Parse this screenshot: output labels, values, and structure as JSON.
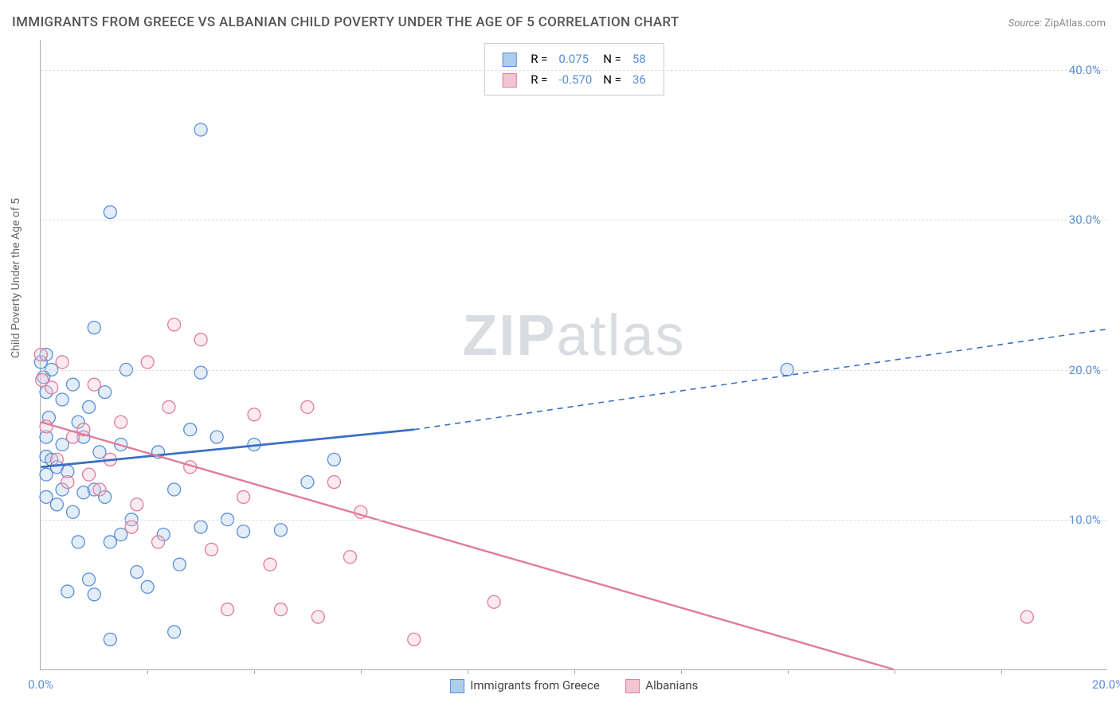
{
  "title": "IMMIGRANTS FROM GREECE VS ALBANIAN CHILD POVERTY UNDER THE AGE OF 5 CORRELATION CHART",
  "source_label": "Source:",
  "source_name": "ZipAtlas.com",
  "watermark_1": "ZIP",
  "watermark_2": "atlas",
  "ylabel": "Child Poverty Under the Age of 5",
  "chart": {
    "type": "scatter",
    "xlim": [
      0,
      20
    ],
    "ylim": [
      0,
      42
    ],
    "x_ticks": [
      0,
      20
    ],
    "x_tick_labels": [
      "0.0%",
      "20.0%"
    ],
    "x_minor_ticks": [
      2.0,
      4.0,
      6.0,
      8.0,
      10.0,
      12.0,
      14.0,
      16.0,
      18.0
    ],
    "y_ticks": [
      10,
      20,
      30,
      40
    ],
    "y_tick_labels": [
      "10.0%",
      "20.0%",
      "30.0%",
      "40.0%"
    ],
    "background_color": "#ffffff",
    "grid_color": "#dddddd",
    "axis_color": "#aaaaaa",
    "tick_label_color": "#5b8fd6",
    "label_color": "#666666",
    "title_color": "#555555",
    "title_fontsize": 17,
    "marker_radius": 8,
    "marker_fill_opacity": 0.35,
    "marker_stroke_width": 1.3
  },
  "series": {
    "blue": {
      "label": "Immigrants from Greece",
      "color": "#6fa3de",
      "fill": "#aeccec",
      "stroke": "#5b8fd6",
      "R": "0.075",
      "N": "58",
      "trend_solid": {
        "x1": 0,
        "y1": 13.5,
        "x2": 7,
        "y2": 16.0
      },
      "trend_dashed": {
        "x1": 7,
        "y1": 16.0,
        "x2": 20,
        "y2": 22.7
      },
      "trend_width_solid": 2.8,
      "trend_width_dashed": 1.6,
      "points": [
        [
          0.0,
          20.5
        ],
        [
          0.05,
          19.5
        ],
        [
          0.1,
          21.0
        ],
        [
          0.1,
          18.5
        ],
        [
          0.1,
          15.5
        ],
        [
          0.1,
          14.2
        ],
        [
          0.1,
          13.0
        ],
        [
          0.1,
          11.5
        ],
        [
          0.15,
          16.8
        ],
        [
          0.2,
          20.0
        ],
        [
          0.2,
          14.0
        ],
        [
          0.3,
          13.5
        ],
        [
          0.3,
          11.0
        ],
        [
          0.4,
          18.0
        ],
        [
          0.4,
          15.0
        ],
        [
          0.4,
          12.0
        ],
        [
          0.5,
          13.2
        ],
        [
          0.5,
          5.2
        ],
        [
          0.6,
          19.0
        ],
        [
          0.6,
          10.5
        ],
        [
          0.7,
          16.5
        ],
        [
          0.7,
          8.5
        ],
        [
          0.8,
          15.5
        ],
        [
          0.8,
          11.8
        ],
        [
          0.9,
          17.5
        ],
        [
          0.9,
          6.0
        ],
        [
          1.0,
          22.8
        ],
        [
          1.0,
          12.0
        ],
        [
          1.0,
          5.0
        ],
        [
          1.1,
          14.5
        ],
        [
          1.2,
          18.5
        ],
        [
          1.2,
          11.5
        ],
        [
          1.3,
          30.5
        ],
        [
          1.3,
          8.5
        ],
        [
          1.3,
          2.0
        ],
        [
          1.5,
          9.0
        ],
        [
          1.5,
          15.0
        ],
        [
          1.6,
          20.0
        ],
        [
          1.7,
          10.0
        ],
        [
          1.8,
          6.5
        ],
        [
          2.0,
          5.5
        ],
        [
          2.2,
          14.5
        ],
        [
          2.3,
          9.0
        ],
        [
          2.5,
          12.0
        ],
        [
          2.5,
          2.5
        ],
        [
          2.6,
          7.0
        ],
        [
          2.8,
          16.0
        ],
        [
          3.0,
          19.8
        ],
        [
          3.0,
          9.5
        ],
        [
          3.0,
          36.0
        ],
        [
          3.3,
          15.5
        ],
        [
          3.5,
          10.0
        ],
        [
          3.8,
          9.2
        ],
        [
          4.0,
          15.0
        ],
        [
          4.5,
          9.3
        ],
        [
          5.0,
          12.5
        ],
        [
          5.5,
          14.0
        ],
        [
          14.0,
          20.0
        ]
      ]
    },
    "pink": {
      "label": "Albanians",
      "color": "#e89bb2",
      "fill": "#f3c5d3",
      "stroke": "#e07c9c",
      "R": "-0.570",
      "N": "36",
      "trend": {
        "x1": 0,
        "y1": 16.5,
        "x2": 16,
        "y2": 0.0
      },
      "trend_width": 2.4,
      "points": [
        [
          0.0,
          21.0
        ],
        [
          0.02,
          19.3
        ],
        [
          0.1,
          16.2
        ],
        [
          0.2,
          18.8
        ],
        [
          0.3,
          14.0
        ],
        [
          0.4,
          20.5
        ],
        [
          0.5,
          12.5
        ],
        [
          0.6,
          15.5
        ],
        [
          0.8,
          16.0
        ],
        [
          0.9,
          13.0
        ],
        [
          1.0,
          19.0
        ],
        [
          1.1,
          12.0
        ],
        [
          1.3,
          14.0
        ],
        [
          1.5,
          16.5
        ],
        [
          1.7,
          9.5
        ],
        [
          1.8,
          11.0
        ],
        [
          2.0,
          20.5
        ],
        [
          2.2,
          8.5
        ],
        [
          2.4,
          17.5
        ],
        [
          2.5,
          23.0
        ],
        [
          2.8,
          13.5
        ],
        [
          3.0,
          22.0
        ],
        [
          3.2,
          8.0
        ],
        [
          3.5,
          4.0
        ],
        [
          3.8,
          11.5
        ],
        [
          4.0,
          17.0
        ],
        [
          4.3,
          7.0
        ],
        [
          4.5,
          4.0
        ],
        [
          5.0,
          17.5
        ],
        [
          5.2,
          3.5
        ],
        [
          5.5,
          12.5
        ],
        [
          5.8,
          7.5
        ],
        [
          6.0,
          10.5
        ],
        [
          7.0,
          2.0
        ],
        [
          8.5,
          4.5
        ],
        [
          18.5,
          3.5
        ]
      ]
    }
  },
  "legend_top": {
    "R_label": "R =",
    "N_label": "N ="
  }
}
